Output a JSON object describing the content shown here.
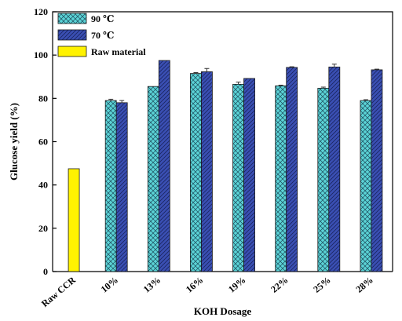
{
  "chart_data": {
    "type": "bar",
    "title": "",
    "xlabel": "KOH Dosage",
    "ylabel": "Glucose yield (%)",
    "ylim": [
      0,
      120
    ],
    "yticks": [
      0,
      20,
      40,
      60,
      80,
      100,
      120
    ],
    "categories": [
      "Raw CCR",
      "10%",
      "13%",
      "16%",
      "19%",
      "22%",
      "25%",
      "28%"
    ],
    "series": [
      {
        "name": "90 ℃",
        "color": "#5bd3d6",
        "pattern": "crosshatch",
        "values": [
          null,
          79.0,
          85.5,
          91.5,
          86.5,
          85.8,
          84.7,
          79.0
        ],
        "errors": [
          null,
          0.6,
          0,
          0.4,
          1.0,
          0.3,
          0.5,
          0.4
        ]
      },
      {
        "name": "70 ℃",
        "color": "#3a4fb3",
        "pattern": "diagonal",
        "values": [
          null,
          78.0,
          97.5,
          92.3,
          89.2,
          94.3,
          94.5,
          93.2
        ],
        "errors": [
          null,
          1.0,
          0,
          1.5,
          0,
          0.3,
          1.3,
          0.3
        ]
      },
      {
        "name": "Raw material",
        "color": "#fff200",
        "pattern": "solid",
        "values": [
          47.5,
          null,
          null,
          null,
          null,
          null,
          null,
          null
        ],
        "errors": [
          null,
          null,
          null,
          null,
          null,
          null,
          null,
          null
        ]
      }
    ],
    "legend_position": "top-left"
  }
}
